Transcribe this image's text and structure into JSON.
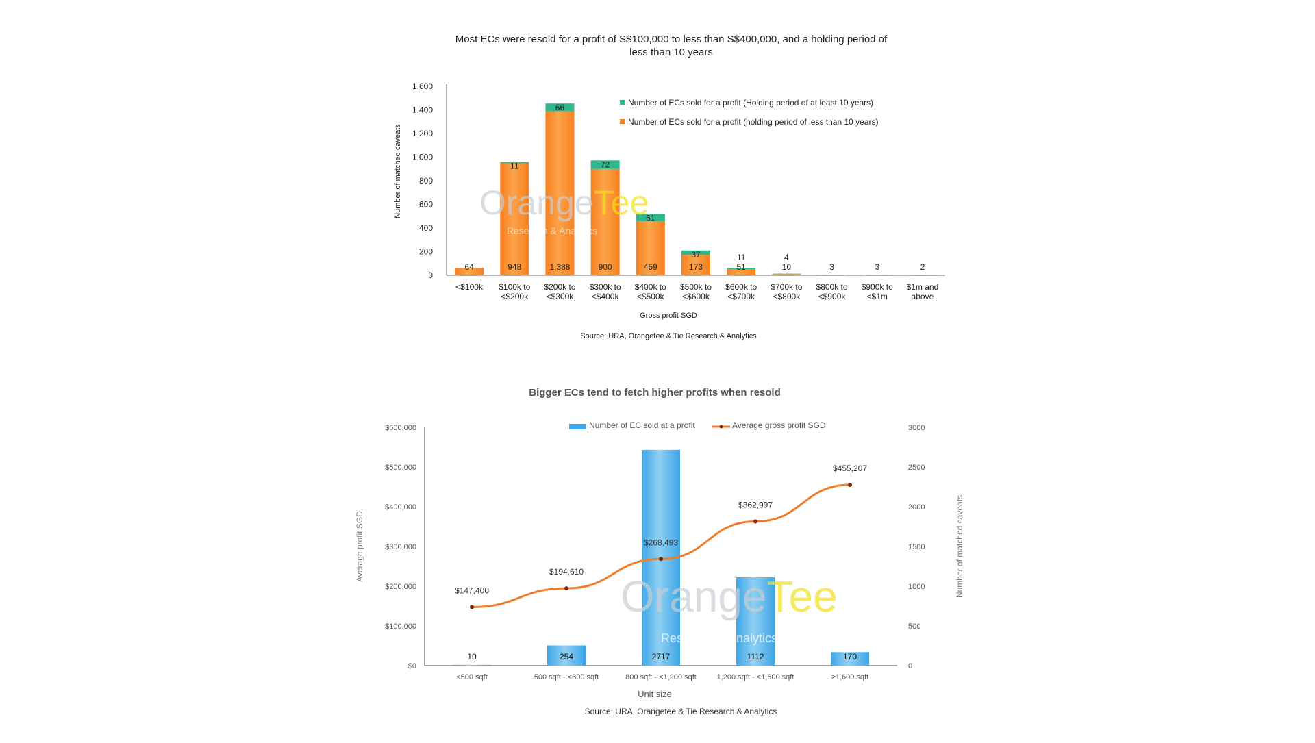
{
  "colors": {
    "orange": "#f7801f",
    "orange_light": "#fca34a",
    "green": "#2fb88f",
    "blue": "#3da6e6",
    "blue_light": "#8fd0f4",
    "line_orange": "#ef7c2a",
    "marker": "#7a2a0a",
    "watermark_gray": "#c9cdd3",
    "watermark_yellow": "#f2e01d"
  },
  "watermark": {
    "brand_part1": "Orange",
    "brand_part2": "Tee",
    "sub": "Research & Analytics"
  },
  "chart_data": [
    {
      "type": "bar",
      "stacked": true,
      "title": "Most ECs were resold for a profit of S$100,000 to less than S$400,000, and a holding period of less than 10 years",
      "title_lines": [
        "Most ECs were resold for a profit of S$100,000 to less than S$400,000, and a holding period of",
        "less than 10 years"
      ],
      "xlabel": "Gross profit SGD",
      "ylabel": "Number of matched caveats",
      "ylim": [
        0,
        1600
      ],
      "yticks": [
        0,
        200,
        400,
        600,
        800,
        1000,
        1200,
        1400,
        1600
      ],
      "ytick_labels": [
        "0",
        "200",
        "400",
        "600",
        "800",
        "1,000",
        "1,200",
        "1,400",
        "1,600"
      ],
      "categories": [
        [
          "<$100k"
        ],
        [
          "$100k to",
          "<$200k"
        ],
        [
          "$200k to",
          "<$300k"
        ],
        [
          "$300k to",
          "<$400k"
        ],
        [
          "$400k to",
          "<$500k"
        ],
        [
          "$500k to",
          "<$600k"
        ],
        [
          "$600k to",
          "<$700k"
        ],
        [
          "$700k to",
          "<$800k"
        ],
        [
          "$800k to",
          "<$900k"
        ],
        [
          "$900k to",
          "<$1m"
        ],
        [
          "$1m and",
          "above"
        ]
      ],
      "series": [
        {
          "name": "Number of ECs sold for a profit (holding period of less than 10 years)",
          "color": "#f7801f",
          "values": [
            64,
            948,
            1388,
            900,
            459,
            173,
            51,
            10,
            3,
            3,
            2
          ],
          "labels": [
            "64",
            "948",
            "1,388",
            "900",
            "459",
            "173",
            "51",
            "10",
            "3",
            "3",
            "2"
          ]
        },
        {
          "name": "Number of ECs sold for a profit (Holding period of at least 10 years)",
          "color": "#2fb88f",
          "values": [
            0,
            11,
            66,
            72,
            61,
            37,
            11,
            4,
            0,
            0,
            0
          ],
          "labels": [
            "",
            "11",
            "66",
            "72",
            "61",
            "37",
            "11",
            "4",
            "",
            "",
            ""
          ]
        }
      ],
      "legend_position": "top-right",
      "source": "Source: URA, Orangetee & Tie Research & Analytics"
    },
    {
      "type": "bar+line",
      "title": "Bigger ECs tend to fetch higher profits when resold",
      "xlabel": "Unit size",
      "ylabel_left": "Average profit SGD",
      "ylabel_right": "Number of matched caveats",
      "categories": [
        "<500 sqft",
        "500 sqft - <800 sqft",
        "800 sqft - <1,200 sqft",
        "1,200 sqft - <1,600 sqft",
        "≥1,600 sqft"
      ],
      "ylim_left": [
        0,
        600000
      ],
      "yticks_left": [
        "$0",
        "$100,000",
        "$200,000",
        "$300,000",
        "$400,000",
        "$500,000",
        "$600,000"
      ],
      "ylim_right": [
        0,
        3000
      ],
      "yticks_right": [
        "0",
        "500",
        "1000",
        "1500",
        "2000",
        "2500",
        "3000"
      ],
      "series": [
        {
          "name": "Number of EC sold at a profit",
          "kind": "bar",
          "axis": "right",
          "values": [
            10,
            254,
            2717,
            1112,
            170
          ],
          "labels": [
            "10",
            "254",
            "2717",
            "1112",
            "170"
          ]
        },
        {
          "name": "Average gross profit SGD",
          "kind": "line",
          "axis": "left",
          "values": [
            147400,
            194610,
            268493,
            362997,
            455207
          ],
          "labels": [
            "$147,400",
            "$194,610",
            "$268,493",
            "$362,997",
            "$455,207"
          ]
        }
      ],
      "legend_position": "top",
      "source": "Source: URA, Orangetee & Tie Research & Analytics"
    }
  ]
}
